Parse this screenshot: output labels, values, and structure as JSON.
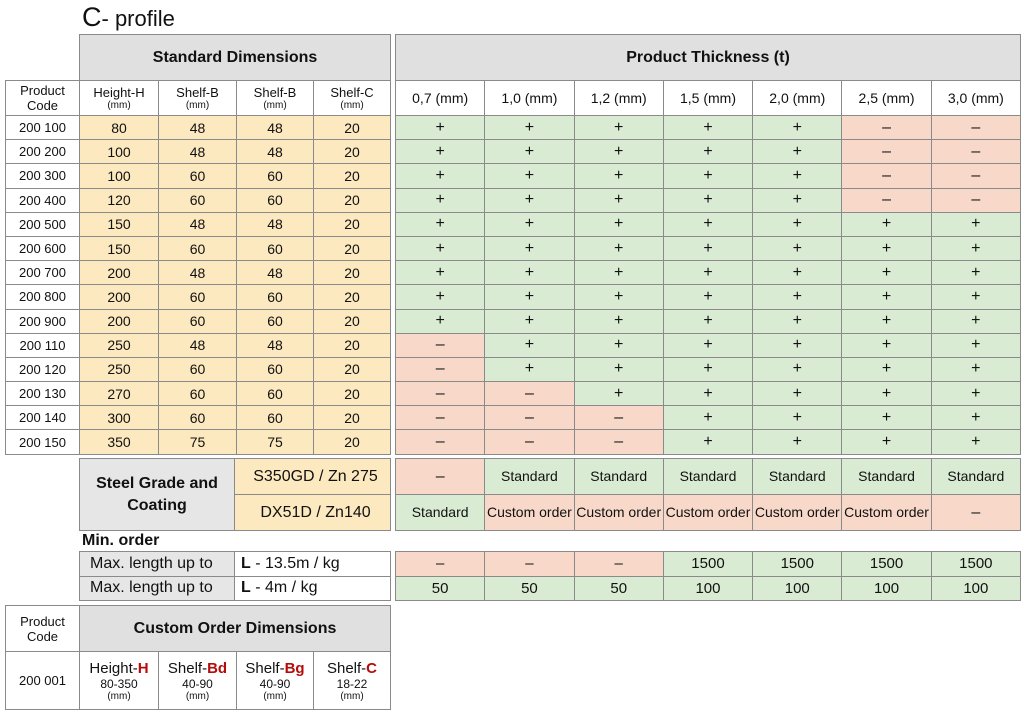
{
  "title": {
    "prefix": "C",
    "rest": "- profile"
  },
  "left_header": {
    "section": "Standard Dimensions",
    "product_code": "Product Code",
    "columns": [
      {
        "label": "Height-H",
        "unit": "(mm)"
      },
      {
        "label": "Shelf-B",
        "unit": "(mm)"
      },
      {
        "label": "Shelf-B",
        "unit": "(mm)"
      },
      {
        "label": "Shelf-C",
        "unit": "(mm)"
      }
    ]
  },
  "right_header": {
    "section": "Product Thickness (t)",
    "thicknesses": [
      "0,7 (mm)",
      "1,0 (mm)",
      "1,2 (mm)",
      "1,5 (mm)",
      "2,0 (mm)",
      "2,5 (mm)",
      "3,0 (mm)"
    ]
  },
  "rows": [
    {
      "code": "200 100",
      "h": "80",
      "b1": "48",
      "b2": "48",
      "c": "20",
      "avail": [
        "+",
        "+",
        "+",
        "+",
        "+",
        "–",
        "–"
      ]
    },
    {
      "code": "200 200",
      "h": "100",
      "b1": "48",
      "b2": "48",
      "c": "20",
      "avail": [
        "+",
        "+",
        "+",
        "+",
        "+",
        "–",
        "–"
      ]
    },
    {
      "code": "200 300",
      "h": "100",
      "b1": "60",
      "b2": "60",
      "c": "20",
      "avail": [
        "+",
        "+",
        "+",
        "+",
        "+",
        "–",
        "–"
      ]
    },
    {
      "code": "200 400",
      "h": "120",
      "b1": "60",
      "b2": "60",
      "c": "20",
      "avail": [
        "+",
        "+",
        "+",
        "+",
        "+",
        "–",
        "–"
      ]
    },
    {
      "code": "200 500",
      "h": "150",
      "b1": "48",
      "b2": "48",
      "c": "20",
      "avail": [
        "+",
        "+",
        "+",
        "+",
        "+",
        "+",
        "+"
      ]
    },
    {
      "code": "200 600",
      "h": "150",
      "b1": "60",
      "b2": "60",
      "c": "20",
      "avail": [
        "+",
        "+",
        "+",
        "+",
        "+",
        "+",
        "+"
      ]
    },
    {
      "code": "200 700",
      "h": "200",
      "b1": "48",
      "b2": "48",
      "c": "20",
      "avail": [
        "+",
        "+",
        "+",
        "+",
        "+",
        "+",
        "+"
      ]
    },
    {
      "code": "200 800",
      "h": "200",
      "b1": "60",
      "b2": "60",
      "c": "20",
      "avail": [
        "+",
        "+",
        "+",
        "+",
        "+",
        "+",
        "+"
      ]
    },
    {
      "code": "200 900",
      "h": "200",
      "b1": "60",
      "b2": "60",
      "c": "20",
      "avail": [
        "+",
        "+",
        "+",
        "+",
        "+",
        "+",
        "+"
      ]
    },
    {
      "code": "200 110",
      "h": "250",
      "b1": "48",
      "b2": "48",
      "c": "20",
      "avail": [
        "–",
        "+",
        "+",
        "+",
        "+",
        "+",
        "+"
      ]
    },
    {
      "code": "200 120",
      "h": "250",
      "b1": "60",
      "b2": "60",
      "c": "20",
      "avail": [
        "–",
        "+",
        "+",
        "+",
        "+",
        "+",
        "+"
      ]
    },
    {
      "code": "200 130",
      "h": "270",
      "b1": "60",
      "b2": "60",
      "c": "20",
      "avail": [
        "–",
        "–",
        "+",
        "+",
        "+",
        "+",
        "+"
      ]
    },
    {
      "code": "200 140",
      "h": "300",
      "b1": "60",
      "b2": "60",
      "c": "20",
      "avail": [
        "–",
        "–",
        "–",
        "+",
        "+",
        "+",
        "+"
      ]
    },
    {
      "code": "200 150",
      "h": "350",
      "b1": "75",
      "b2": "75",
      "c": "20",
      "avail": [
        "–",
        "–",
        "–",
        "+",
        "+",
        "+",
        "+"
      ]
    }
  ],
  "steel": {
    "label": "Steel Grade and Coating",
    "grades": [
      {
        "name": "S350GD  / Zn 275",
        "cells": [
          "–",
          "Standard",
          "Standard",
          "Standard",
          "Standard",
          "Standard",
          "Standard"
        ]
      },
      {
        "name": "DX51D  / Zn140",
        "cells": [
          "Standard",
          "Custom order",
          "Custom order",
          "Custom order",
          "Custom order",
          "Custom order",
          "–"
        ]
      }
    ]
  },
  "min_order": {
    "label": "Min. order",
    "rows": [
      {
        "label": "Max. length up to",
        "bold": "L",
        "rest": " - 13.5m / kg",
        "cells": [
          "–",
          "–",
          "–",
          "1500",
          "1500",
          "1500",
          "1500"
        ]
      },
      {
        "label": "Max. length up to",
        "bold": "L",
        "rest": " - 4m / kg",
        "cells": [
          "50",
          "50",
          "50",
          "100",
          "100",
          "100",
          "100"
        ]
      }
    ]
  },
  "custom": {
    "product_code": "Product Code",
    "title": "Custom Order Dimensions",
    "code": "200 001",
    "columns": [
      {
        "prefix": "Height-",
        "letter": "H",
        "range": "80-350",
        "unit": "(mm)"
      },
      {
        "prefix": "Shelf-",
        "letter": "Bd",
        "range": "40-90",
        "unit": "(mm)"
      },
      {
        "prefix": "Shelf-",
        "letter": "Bg",
        "range": "40-90",
        "unit": "(mm)"
      },
      {
        "prefix": "Shelf-",
        "letter": "C",
        "range": "18-22",
        "unit": "(mm)"
      }
    ]
  },
  "colors": {
    "yellow": "#fde9bf",
    "green": "#d9ecd3",
    "red": "#f8d9c9",
    "gray": "#e0e0e0",
    "accent_red": "#b50b0b"
  }
}
